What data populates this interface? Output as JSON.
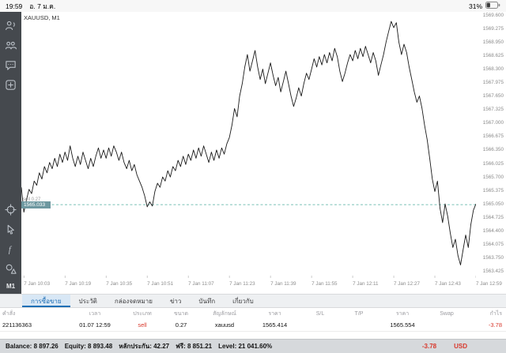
{
  "status_bar": {
    "time": "19:59",
    "date": "อ. 7 ม.ค.",
    "battery_percent": "31%"
  },
  "sidebar": {
    "timeframe": "M1"
  },
  "chart": {
    "symbol_label": "XAUUSD, M1",
    "position_line_label": "sell 0.27",
    "current_price_label": "1565.033"
  },
  "chart_data": {
    "type": "line",
    "title": "XAUUSD, M1",
    "symbol": "XAUUSD",
    "timeframe": "M1",
    "ylim": [
      1563.265,
      1569.68
    ],
    "current_price": 1565.033,
    "line_color": "#1a1a1a",
    "current_line_color": "#4fae9f",
    "grid": false,
    "t_range": [
      2,
      179
    ],
    "y_axis_labels": [
      "1569.600",
      "1569.275",
      "1568.950",
      "1568.625",
      "1568.300",
      "1567.975",
      "1567.650",
      "1567.325",
      "1567.000",
      "1566.675",
      "1566.350",
      "1566.025",
      "1565.700",
      "1565.375",
      "1565.050",
      "1564.725",
      "1564.400",
      "1564.075",
      "1563.750",
      "1563.425"
    ],
    "x_labels": [
      {
        "t": 3,
        "label": "7 Jan 10:03"
      },
      {
        "t": 19,
        "label": "7 Jan 10:19"
      },
      {
        "t": 35,
        "label": "7 Jan 10:35"
      },
      {
        "t": 51,
        "label": "7 Jan 10:51"
      },
      {
        "t": 67,
        "label": "7 Jan 11:07"
      },
      {
        "t": 83,
        "label": "7 Jan 11:23"
      },
      {
        "t": 99,
        "label": "7 Jan 11:39"
      },
      {
        "t": 115,
        "label": "7 Jan 11:55"
      },
      {
        "t": 131,
        "label": "7 Jan 12:11"
      },
      {
        "t": 147,
        "label": "7 Jan 12:27"
      },
      {
        "t": 163,
        "label": "7 Jan 12:43"
      },
      {
        "t": 179,
        "label": "7 Jan 12:59"
      }
    ],
    "values": [
      1565.45,
      1564.85,
      1565.15,
      1565.4,
      1565.3,
      1565.6,
      1565.5,
      1565.8,
      1565.65,
      1565.95,
      1565.8,
      1566.05,
      1565.9,
      1566.15,
      1565.95,
      1566.25,
      1566.05,
      1566.3,
      1566.1,
      1566.45,
      1566.15,
      1565.95,
      1566.2,
      1566.0,
      1566.3,
      1566.1,
      1565.9,
      1566.15,
      1565.95,
      1566.2,
      1566.4,
      1566.15,
      1566.35,
      1566.15,
      1566.4,
      1566.2,
      1566.45,
      1566.3,
      1566.1,
      1566.3,
      1566.05,
      1565.9,
      1566.1,
      1565.85,
      1566.0,
      1565.75,
      1565.6,
      1565.45,
      1565.25,
      1564.98,
      1565.1,
      1565.0,
      1565.35,
      1565.55,
      1565.45,
      1565.7,
      1565.6,
      1565.85,
      1565.7,
      1565.95,
      1565.85,
      1566.1,
      1565.95,
      1566.2,
      1566.0,
      1566.25,
      1566.1,
      1566.35,
      1566.15,
      1566.4,
      1566.2,
      1566.45,
      1566.25,
      1566.05,
      1566.3,
      1566.1,
      1566.35,
      1566.15,
      1566.4,
      1566.25,
      1566.5,
      1566.65,
      1566.95,
      1567.35,
      1567.15,
      1567.65,
      1567.95,
      1568.35,
      1568.65,
      1568.25,
      1568.5,
      1568.75,
      1568.35,
      1568.05,
      1568.3,
      1567.95,
      1568.2,
      1568.45,
      1568.15,
      1567.9,
      1568.1,
      1567.75,
      1568.0,
      1568.25,
      1567.95,
      1567.65,
      1567.4,
      1567.6,
      1567.85,
      1567.65,
      1567.95,
      1568.2,
      1568.05,
      1568.3,
      1568.55,
      1568.35,
      1568.6,
      1568.4,
      1568.65,
      1568.45,
      1568.7,
      1568.5,
      1568.8,
      1568.6,
      1568.25,
      1568.0,
      1568.2,
      1568.45,
      1568.65,
      1568.5,
      1568.75,
      1568.55,
      1568.8,
      1568.6,
      1568.85,
      1568.65,
      1568.45,
      1568.7,
      1568.5,
      1568.15,
      1568.4,
      1568.65,
      1568.95,
      1569.2,
      1569.45,
      1569.3,
      1569.42,
      1568.95,
      1568.65,
      1568.9,
      1568.7,
      1568.35,
      1568.05,
      1567.75,
      1567.5,
      1567.65,
      1567.35,
      1566.95,
      1566.6,
      1566.15,
      1565.65,
      1565.35,
      1565.6,
      1564.95,
      1564.6,
      1565.05,
      1564.75,
      1564.35,
      1564.0,
      1564.2,
      1563.8,
      1563.58,
      1563.95,
      1564.3,
      1564.0,
      1564.55,
      1564.9,
      1565.05
    ]
  },
  "tabs": {
    "items": [
      {
        "label": "การซื้อขาย",
        "selected": true
      },
      {
        "label": "ประวัติ",
        "selected": false
      },
      {
        "label": "กล่องจดหมาย",
        "selected": false
      },
      {
        "label": "ข่าว",
        "selected": false
      },
      {
        "label": "บันทึก",
        "selected": false
      },
      {
        "label": "เกี่ยวกับ",
        "selected": false
      }
    ]
  },
  "positions_table": {
    "headers": [
      "คำสั่ง",
      "เวลา",
      "ประเภท",
      "ขนาด",
      "สัญลักษณ์",
      "ราคา",
      "S/L",
      "T/P",
      "ราคา",
      "Swap",
      "กำไร"
    ],
    "row": {
      "order": "221136363",
      "time": "01.07 12:59",
      "type": "sell",
      "size": "0.27",
      "symbol": "xauusd",
      "open_price": "1565.414",
      "sl": "",
      "tp": "",
      "current_price": "1565.554",
      "swap": "",
      "profit": "-3.78"
    }
  },
  "summary": {
    "items": [
      "Balance: 8 897.26",
      "Equity: 8 893.48",
      "หลักประกัน: 42.27",
      "ฟรี: 8 851.21",
      "Level: 21 041.60%"
    ],
    "profit": "-3.78",
    "currency": "USD"
  },
  "colors": {
    "sell_red": "#d8382c",
    "selected_tab_blue": "#1f6fb6",
    "current_price_teal": "#4fae9f",
    "sidebar_gray": "#45494e"
  }
}
